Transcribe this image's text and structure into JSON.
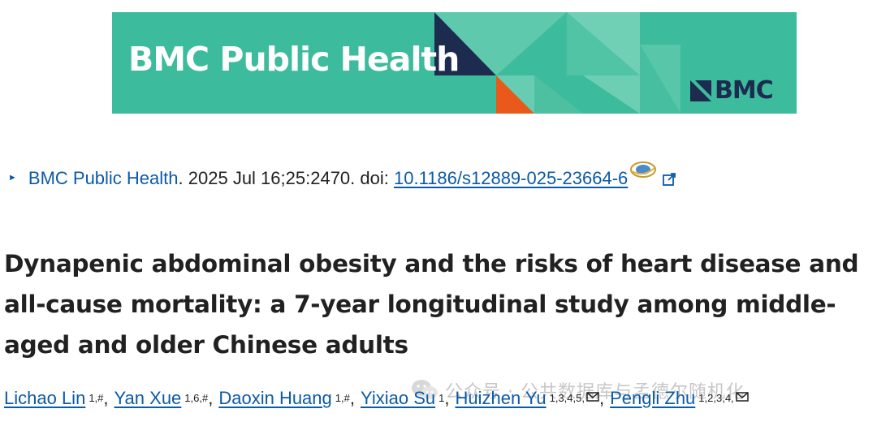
{
  "banner": {
    "title": "BMC Public Health",
    "logo_text": "BMC",
    "bg_color": "#3dbb9d",
    "dark_navy": "#1c2b4e",
    "orange": "#e8591a"
  },
  "citation": {
    "journal": "BMC Public Health",
    "period": ".",
    "details": " 2025 Jul 16;25:2470. doi: ",
    "doi": "10.1186/s12889-025-23664-6",
    "link_color": "#0b5aa8"
  },
  "article": {
    "title_line1": "Dynapenic abdominal obesity and the risks of heart disease and",
    "title_line2": "all-cause mortality: a 7-year longitudinal study among middle-",
    "title_line3": "aged and older Chinese adults"
  },
  "authors": [
    {
      "name": "Lichao Lin",
      "affiliations": "1,#",
      "separator": ",",
      "email_icon": false
    },
    {
      "name": "Yan Xue",
      "affiliations": "1,6,#",
      "separator": ",",
      "email_icon": false
    },
    {
      "name": "Daoxin Huang",
      "affiliations": "1,#",
      "separator": ",",
      "email_icon": false
    },
    {
      "name": "Yixiao Su",
      "affiliations": "1",
      "separator": ",",
      "email_icon": false
    },
    {
      "name": "Huizhen Yu",
      "affiliations": "1,3,4,5,",
      "separator": ",",
      "email_icon": true
    },
    {
      "name": "Pengli Zhu",
      "affiliations": "1,2,3,4,",
      "separator": "",
      "email_icon": true
    }
  ],
  "watermark": {
    "text": "公众号 · 公共数据库与孟德尔随机化",
    "icon": "wechat-icon"
  }
}
